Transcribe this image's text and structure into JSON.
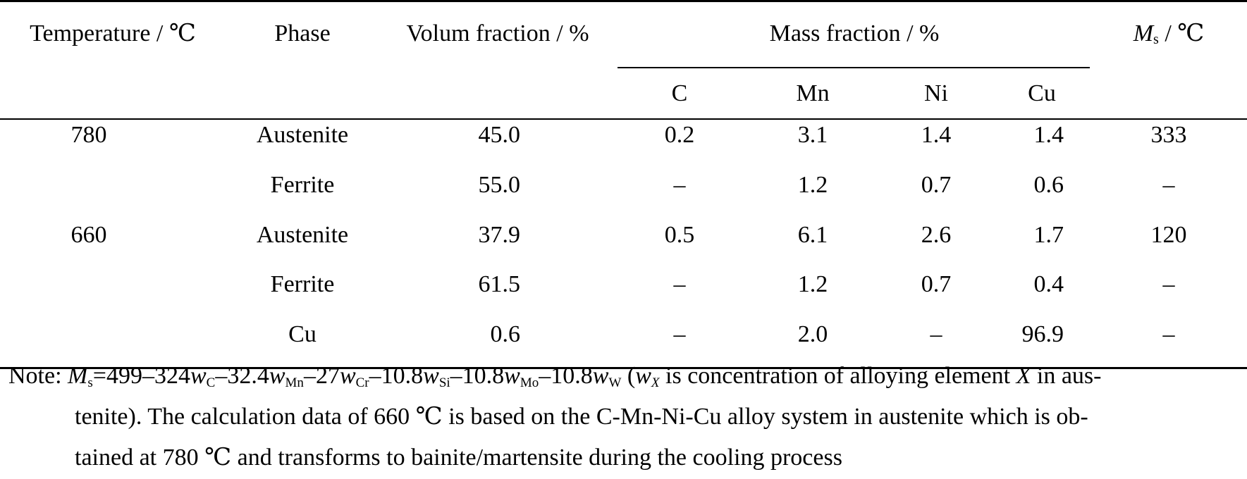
{
  "table": {
    "headers": {
      "temperature": "Temperature / ℃",
      "phase": "Phase",
      "volume_fraction": "Volum fraction / %",
      "mass_fraction": "Mass fraction / %",
      "ms_symbol": "M",
      "ms_subscript": "s",
      "ms_unit": " / ℃",
      "elements": [
        "C",
        "Mn",
        "Ni",
        "Cu"
      ]
    },
    "rows": [
      {
        "temperature": "780",
        "phase": "Austenite",
        "volume": "45.0",
        "C": "0.2",
        "Mn": "3.1",
        "Ni": "1.4",
        "Cu": "1.4",
        "Ms": "333"
      },
      {
        "temperature": "",
        "phase": "Ferrite",
        "volume": "55.0",
        "C": "–",
        "Mn": "1.2",
        "Ni": "0.7",
        "Cu": "0.6",
        "Ms": "–"
      },
      {
        "temperature": "660",
        "phase": "Austenite",
        "volume": "37.9",
        "C": "0.5",
        "Mn": "6.1",
        "Ni": "2.6",
        "Cu": "1.7",
        "Ms": "120"
      },
      {
        "temperature": "",
        "phase": "Ferrite",
        "volume": "61.5",
        "C": "–",
        "Mn": "1.2",
        "Ni": "0.7",
        "Cu": "0.4",
        "Ms": "–"
      },
      {
        "temperature": "",
        "phase": "Cu",
        "volume": "0.6",
        "C": "–",
        "Mn": "2.0",
        "Ni": "–",
        "Cu": "96.9",
        "Ms": "–"
      }
    ]
  },
  "note": {
    "prefix": "Note: ",
    "ms_symbol": "M",
    "ms_subscript": "s",
    "eq": "=499–324",
    "w": "w",
    "sub_C": "C",
    "t1": "–32.4",
    "sub_Mn": "Mn",
    "t2": "–27",
    "sub_Cr": "Cr",
    "t3": "–10.8",
    "sub_Si": "Si",
    "t4": "–10.8",
    "sub_Mo": "Mo",
    "t5": "–10.8",
    "sub_W": "W",
    "t6": " (",
    "sub_X": "X",
    "t7": " is concentration of alloying element ",
    "x_var": "X",
    "t8": " in aus-",
    "line2": "tenite). The calculation data of 660 ℃ is based on the C-Mn-Ni-Cu alloy system in austenite which is ob-",
    "line3": "tained at 780 ℃ and transforms to bainite/martensite during the cooling process"
  }
}
